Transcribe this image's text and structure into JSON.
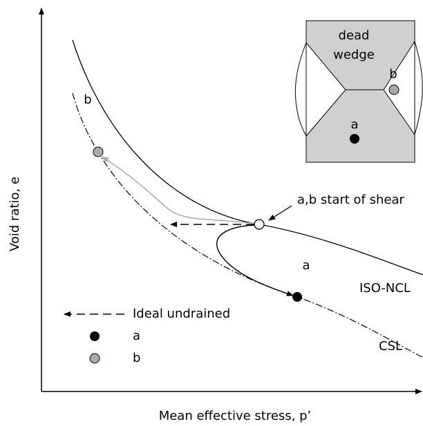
{
  "diagram": {
    "x_axis_label": "Mean effective stress, p’",
    "y_axis_label": "Void ratio, e",
    "curve_labels": {
      "iso_ncl": "ISO-NCL",
      "csl": "CSL"
    },
    "annotations": {
      "start_of_shear": "a,b start of shear",
      "path_a": "a",
      "path_b": "b"
    },
    "legend": [
      {
        "label": "Ideal undrained"
      },
      {
        "label": "a"
      },
      {
        "label": "b"
      }
    ],
    "inset": {
      "title_line1": "dead",
      "title_line2": "wedge",
      "point_a": "a",
      "point_b": "b"
    }
  }
}
